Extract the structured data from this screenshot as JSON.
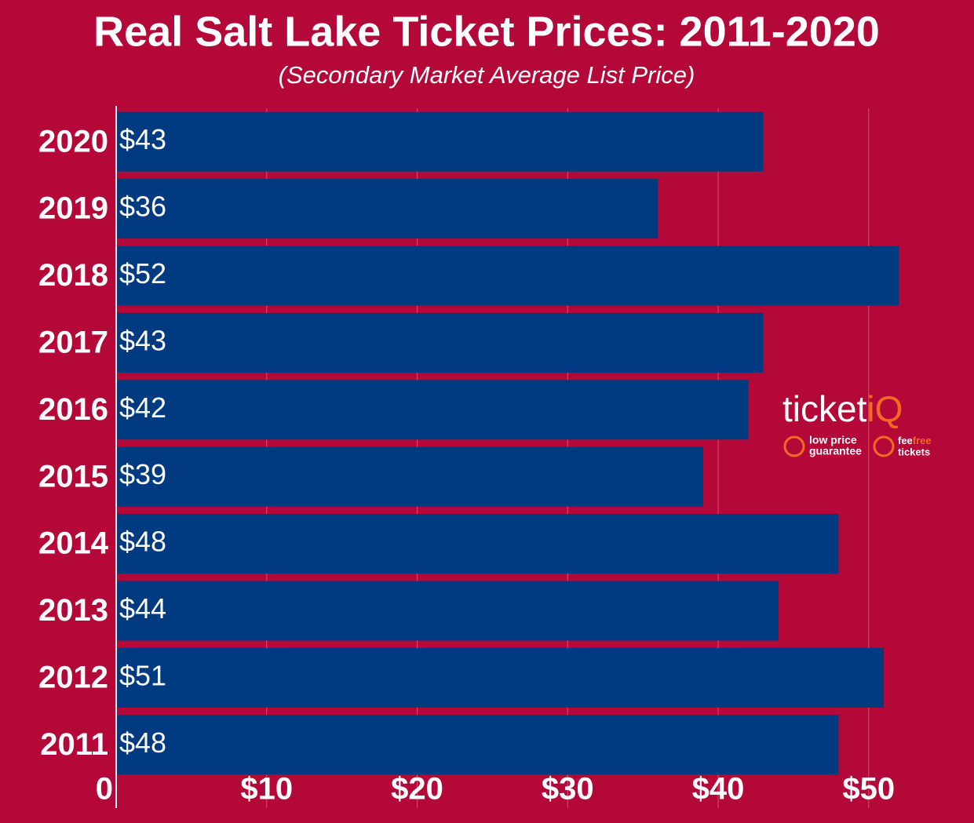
{
  "chart_data": {
    "type": "barh",
    "title": "Real Salt Lake Ticket Prices: 2011-2020",
    "subtitle": "(Secondary Market Average List Price)",
    "categories": [
      "2020",
      "2019",
      "2018",
      "2017",
      "2016",
      "2015",
      "2014",
      "2013",
      "2012",
      "2011"
    ],
    "values": [
      43,
      36,
      52,
      43,
      42,
      39,
      48,
      44,
      51,
      48
    ],
    "value_labels": [
      "$43",
      "$36",
      "$52",
      "$43",
      "$42",
      "$39",
      "$48",
      "$44",
      "$51",
      "$48"
    ],
    "color": "#003a80",
    "xlim": [
      0,
      57
    ],
    "xticks": [
      0,
      {
        "value": 10,
        "label": "$10"
      },
      {
        "value": 20,
        "label": "$20"
      },
      {
        "value": 30,
        "label": "$30"
      },
      {
        "value": 40,
        "label": "$40"
      },
      {
        "value": 50,
        "label": "$50"
      }
    ],
    "grid": true,
    "logo": {
      "brand": "ticket",
      "brand_accent": "iQ",
      "badge1_line1": "low price",
      "badge1_line2": "guarantee",
      "badge2_fee": "fee",
      "badge2_free": "free",
      "badge2_line2": "tickets"
    }
  }
}
